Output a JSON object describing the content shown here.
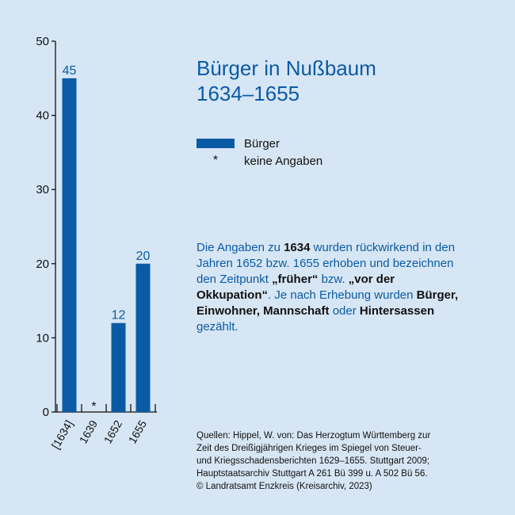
{
  "chart_data": {
    "type": "bar",
    "categories": [
      "[1634]",
      "1639",
      "1652",
      "1655"
    ],
    "values": [
      45,
      null,
      12,
      20
    ],
    "data_labels": [
      "45",
      "*",
      "12",
      "20"
    ],
    "ylim": [
      0,
      50
    ],
    "yticks": [
      0,
      10,
      20,
      30,
      40,
      50
    ],
    "grid": false,
    "bar_color": "#0b5aa6",
    "label_color": "#0b5aa6"
  },
  "title": {
    "line1": "Bürger in Nußbaum",
    "line2": "1634–1655"
  },
  "legend": {
    "series_label": "Bürger",
    "missing_mark": "*",
    "missing_label": "keine Angaben"
  },
  "note": {
    "p1": "Die Angaben zu ",
    "b1": "1634",
    "p2": " wurden rückwirkend in den Jahren 1652 bzw. 1655 erhoben und bezeichnen den Zeitpunkt ",
    "b2": "„früher“",
    "p3": " bzw. ",
    "b3": "„vor der Okkupation“",
    "p4": ". Je nach Erhebung wurden ",
    "b4": "Bürger, Einwohner, Mannschaft",
    "p5": " oder ",
    "b5": "Hintersassen",
    "p6": " gezählt."
  },
  "sources": [
    "Quellen: Hippel, W. von: Das Herzogtum Württemberg zur",
    "Zeit des Dreißigjährigen Krieges im Spiegel von Steuer-",
    "und Kriegsschadensberichten 1629–1655. Stuttgart 2009;",
    "Hauptstaatsarchiv Stuttgart A 261 Bü 399 u. A 502 Bü 56.",
    "© Landratsamt Enzkreis (Kreisarchiv, 2023)"
  ],
  "colors": {
    "background": "#d6e6f4",
    "accent": "#0b5aa6",
    "text": "#111111"
  }
}
